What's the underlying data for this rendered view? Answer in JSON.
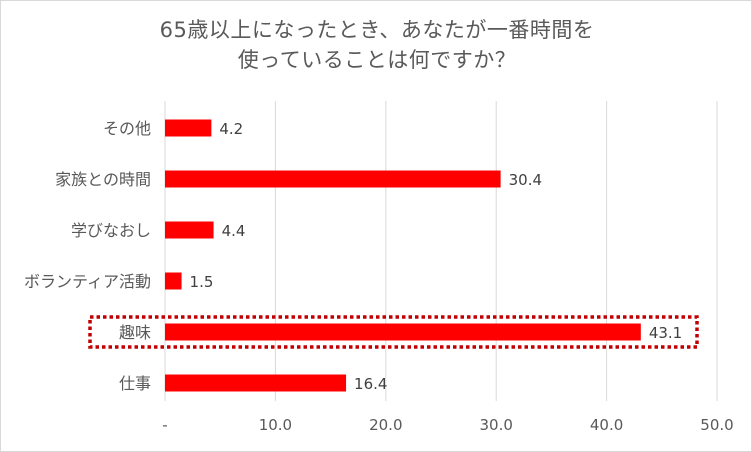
{
  "chart_data": {
    "type": "bar",
    "orientation": "horizontal",
    "title_lines": [
      "65歳以上になったとき、あなたが一番時間を",
      "使っていることは何ですか？"
    ],
    "categories": [
      "その他",
      "家族との時間",
      "学びなおし",
      "ボランティア活動",
      "趣味",
      "仕事"
    ],
    "values": [
      4.2,
      30.4,
      4.4,
      1.5,
      43.1,
      16.4
    ],
    "value_labels": [
      "4.2",
      "30.4",
      "4.4",
      "1.5",
      "43.1",
      "16.4"
    ],
    "xlim": [
      0,
      50
    ],
    "x_ticks": [
      0,
      10,
      20,
      30,
      40,
      50
    ],
    "x_tick_labels": [
      "-",
      "10.0",
      "20.0",
      "30.0",
      "40.0",
      "50.0"
    ],
    "highlighted_category": "趣味",
    "grid": true,
    "legend": "none"
  },
  "colors": {
    "bar": "#ff0000",
    "highlight_border": "#c00000",
    "grid": "#d9d9d9",
    "text": "#595959"
  }
}
